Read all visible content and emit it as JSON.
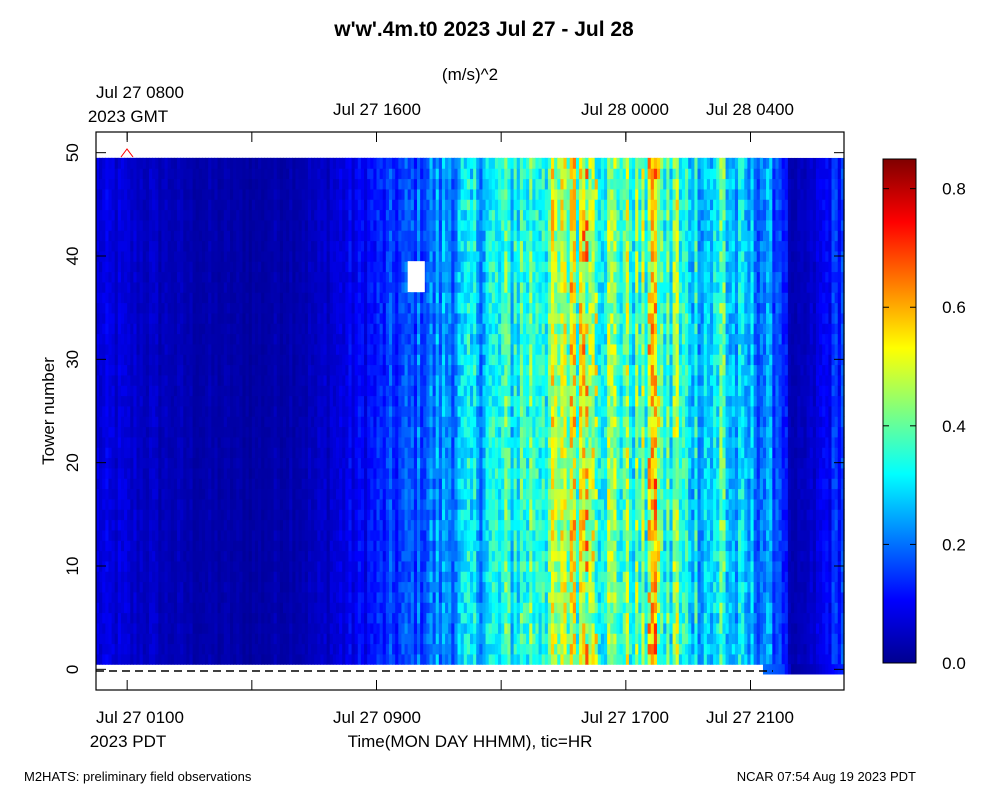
{
  "title": "w'w'.4m.t0 2023 Jul 27 - Jul 28",
  "units": "(m/s)^2",
  "ylabel": "Tower number",
  "xlabel": "Time(MON DAY HHMM), tic=HR",
  "footer_left": "M2HATS: preliminary field observations",
  "footer_right": "NCAR 07:54 Aug 19 2023 PDT",
  "top_axis": {
    "labels": [
      "Jul 27 0800",
      "Jul 27 1600",
      "Jul 28 0000",
      "Jul 28 0400"
    ],
    "timezone": "2023 GMT",
    "hours": [
      0,
      8,
      16,
      20
    ]
  },
  "bottom_axis": {
    "labels": [
      "Jul 27 0100",
      "Jul 27 0900",
      "Jul 27 1700",
      "Jul 27 2100"
    ],
    "timezone": "2023 PDT",
    "hours": [
      0,
      8,
      16,
      20
    ],
    "tick_hours": [
      0,
      4,
      8,
      12,
      16,
      20
    ]
  },
  "y_ticks": [
    "0",
    "10",
    "20",
    "30",
    "40",
    "50"
  ],
  "colorbar": {
    "ticks": [
      "0.0",
      "0.2",
      "0.4",
      "0.6",
      "0.8"
    ],
    "min": 0.0,
    "max": 0.85,
    "colormap": "jet"
  },
  "chart_data": {
    "type": "heatmap",
    "title": "w'w'.4m.t0 2023 Jul 27 - Jul 28",
    "xlabel": "Time(MON DAY HHMM), tic=HR",
    "ylabel": "Tower number",
    "x_unit": "hours since Jul 27 0100 PDT",
    "x_range": [
      -1,
      23
    ],
    "y_range": [
      -2,
      52
    ],
    "towers": [
      1,
      49
    ],
    "value_unit": "(m/s)^2",
    "value_range": [
      0.0,
      0.85
    ],
    "time_profile": [
      {
        "hour": -1.0,
        "value": 0.08
      },
      {
        "hour": 0.5,
        "value": 0.06
      },
      {
        "hour": 2.0,
        "value": 0.04
      },
      {
        "hour": 4.0,
        "value": 0.03
      },
      {
        "hour": 6.0,
        "value": 0.05
      },
      {
        "hour": 7.5,
        "value": 0.1
      },
      {
        "hour": 9.0,
        "value": 0.16
      },
      {
        "hour": 10.5,
        "value": 0.24
      },
      {
        "hour": 12.0,
        "value": 0.32
      },
      {
        "hour": 13.5,
        "value": 0.4
      },
      {
        "hour": 14.5,
        "value": 0.43
      },
      {
        "hour": 15.5,
        "value": 0.4
      },
      {
        "hour": 17.0,
        "value": 0.35
      },
      {
        "hour": 18.5,
        "value": 0.3
      },
      {
        "hour": 20.0,
        "value": 0.24
      },
      {
        "hour": 21.0,
        "value": 0.18
      },
      {
        "hour": 21.3,
        "value": 0.03
      },
      {
        "hour": 22.0,
        "value": 0.06
      },
      {
        "hour": 23.0,
        "value": 0.16
      }
    ],
    "peak_columns": [
      {
        "hour": 14.3,
        "value": 0.6
      },
      {
        "hour": 14.7,
        "value": 0.65
      },
      {
        "hour": 15.0,
        "value": 0.55
      },
      {
        "hour": 16.8,
        "value": 0.62
      },
      {
        "hour": 17.0,
        "value": 0.55
      },
      {
        "hour": 17.6,
        "value": 0.5
      },
      {
        "hour": 19.1,
        "value": 0.45
      }
    ],
    "missing_blocks": [
      {
        "hour_start": 9.0,
        "hour_end": 9.55,
        "tower_start": 36.5,
        "tower_end": 39.5
      },
      {
        "hour_start": 20.4,
        "hour_end": 23.0,
        "tower_start": 49.5,
        "tower_end": 52.0
      }
    ],
    "grid": false
  }
}
